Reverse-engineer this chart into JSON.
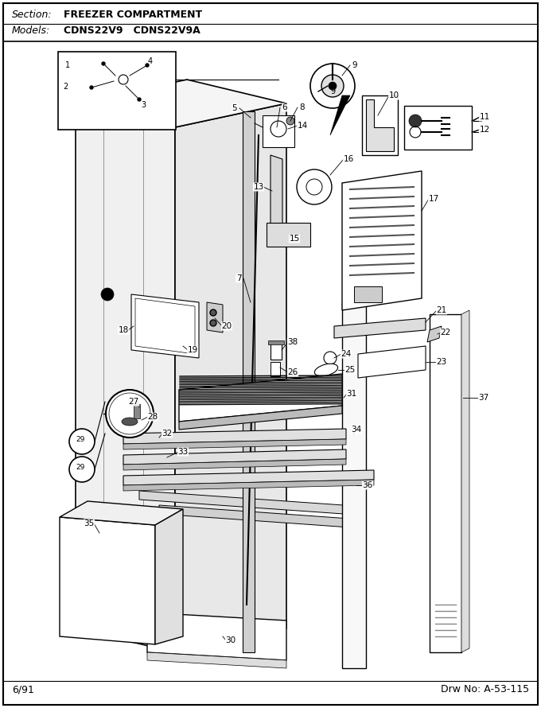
{
  "section_label": "Section:",
  "section_text": "FREEZER COMPARTMENT",
  "models_label": "Models:",
  "models_text": "CDNS22V9   CDNS22V9A",
  "footer_left": "6/91",
  "footer_right": "Drw No: A-53-115",
  "bg_color": "#ffffff",
  "figsize": [
    6.8,
    8.9
  ],
  "dpi": 100
}
